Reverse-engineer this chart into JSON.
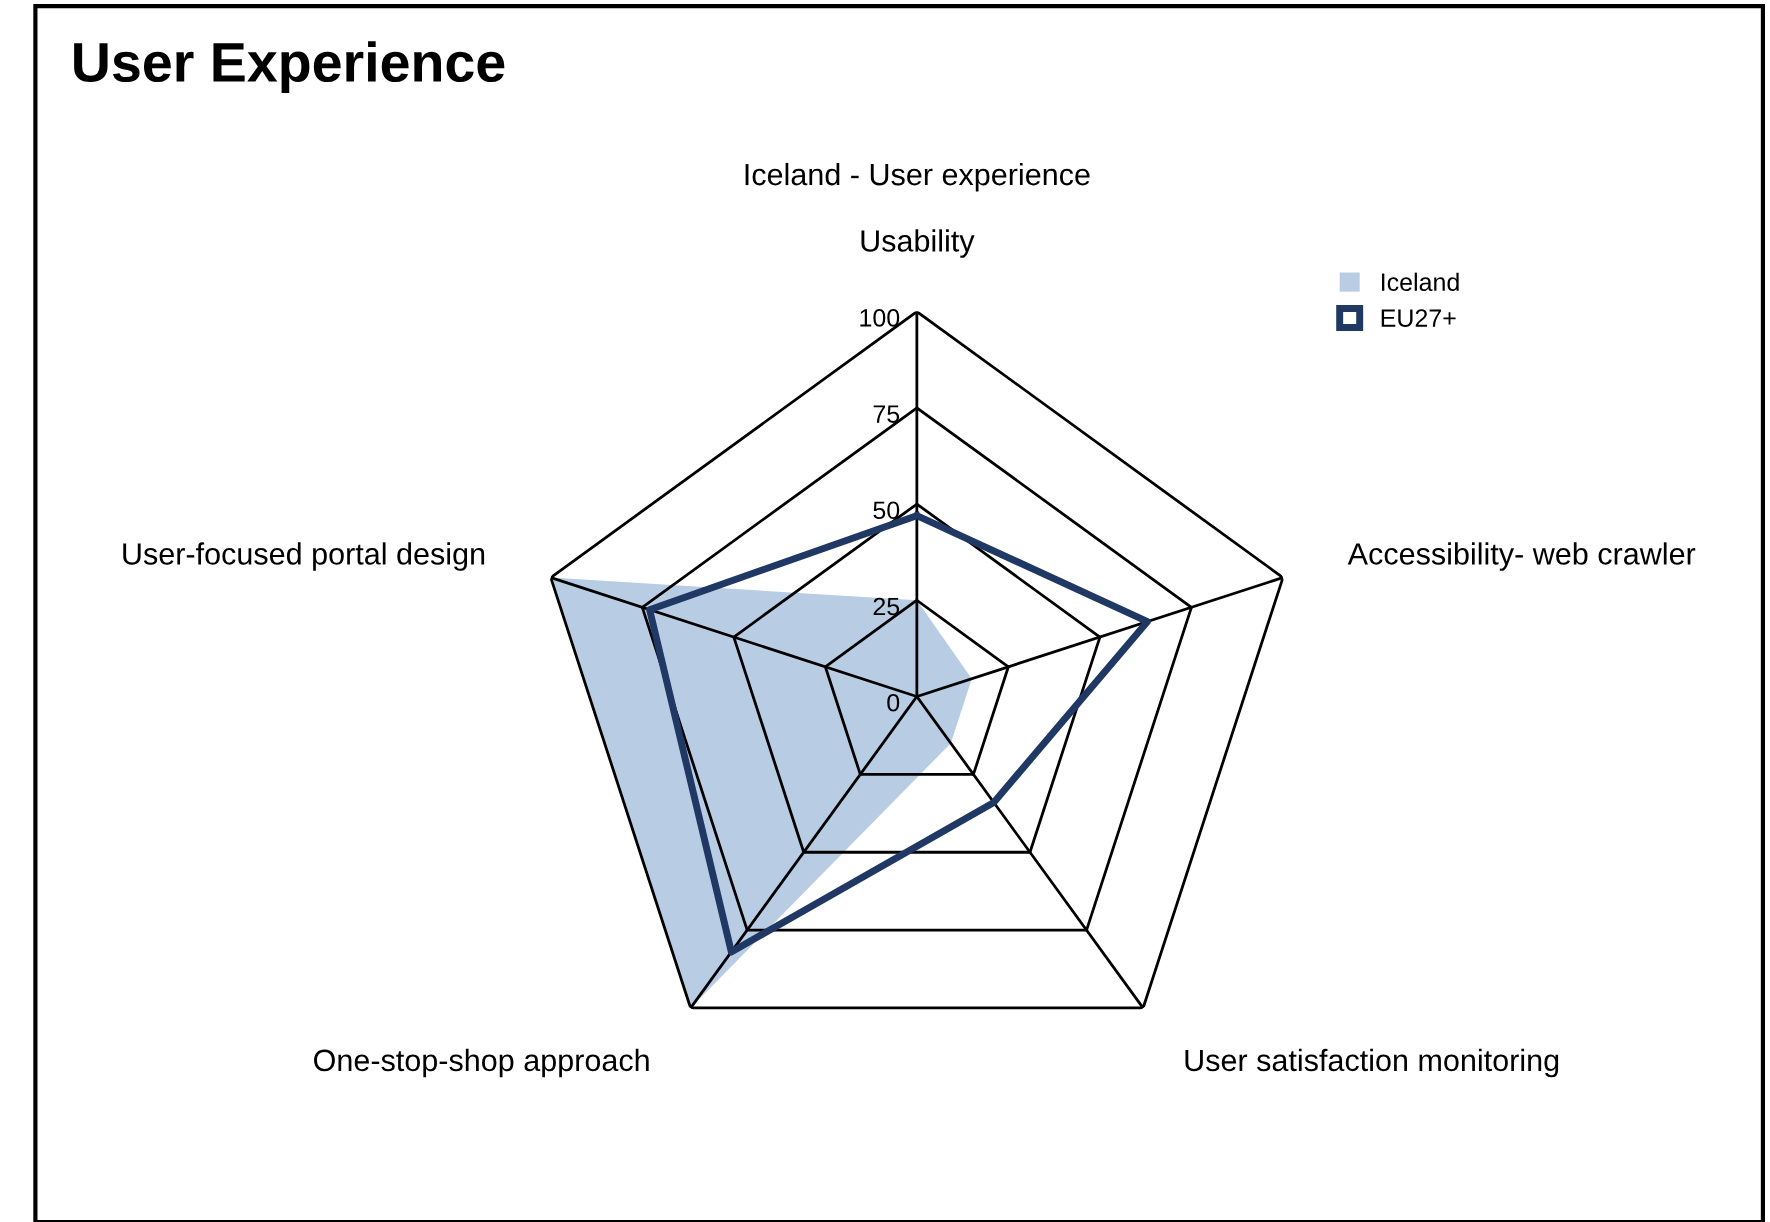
{
  "chart_data": {
    "type": "radar",
    "title": "User Experience",
    "subtitle": "Iceland - User experience",
    "categories": [
      "Usability",
      "Accessibility- web crawler",
      "User satisfaction monitoring",
      "One-stop-shop approach",
      "User-focused portal design"
    ],
    "series": [
      {
        "name": "Iceland",
        "type": "area",
        "color": "#b8cce4",
        "values": [
          25,
          15,
          15,
          100,
          100
        ]
      },
      {
        "name": "EU27+",
        "color": "#1f3864",
        "values": [
          47,
          63,
          34,
          82,
          73
        ]
      }
    ],
    "ylim": [
      0,
      100
    ],
    "yticks": [
      0,
      25,
      50,
      75,
      100
    ],
    "legend": "top right",
    "grid": true
  }
}
